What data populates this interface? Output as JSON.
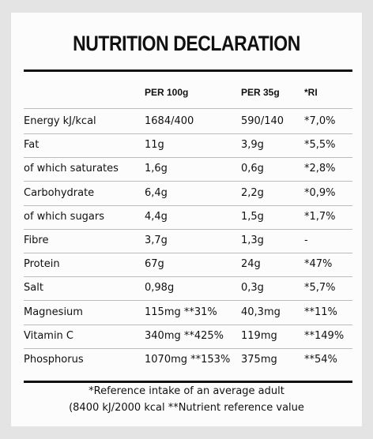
{
  "title": "NUTRITION DECLARATION",
  "table": {
    "header": [
      "PER 100g",
      "PER 35g",
      "*RI"
    ],
    "rows": [
      [
        "Energy kJ/kcal",
        "1684/400",
        "590/140",
        "*7,0%"
      ],
      [
        "Fat",
        "11g",
        "3,9g",
        "*5,5%"
      ],
      [
        "of which saturates",
        "1,6g",
        "0,6g",
        "*2,8%"
      ],
      [
        "Carbohydrate",
        "6,4g",
        "2,2g",
        "*0,9%"
      ],
      [
        "of which sugars",
        "4,4g",
        "1,5g",
        "*1,7%"
      ],
      [
        "Fibre",
        "3,7g",
        "1,3g",
        "-"
      ],
      [
        "Protein",
        "67g",
        "24g",
        "*47%"
      ],
      [
        "Salt",
        "0,98g",
        "0,3g",
        "*5,7%"
      ],
      [
        "Magnesium",
        "115mg **31%",
        "40,3mg",
        "**11%"
      ],
      [
        "Vitamin C",
        "340mg **425%",
        "119mg",
        "**149%"
      ],
      [
        "Phosphorus",
        "1070mg **153%",
        "375mg",
        "**54%"
      ]
    ]
  },
  "footer": [
    "*Reference intake of an average adult",
    "(8400 kJ/2000 kcal **Nutrient reference value"
  ]
}
